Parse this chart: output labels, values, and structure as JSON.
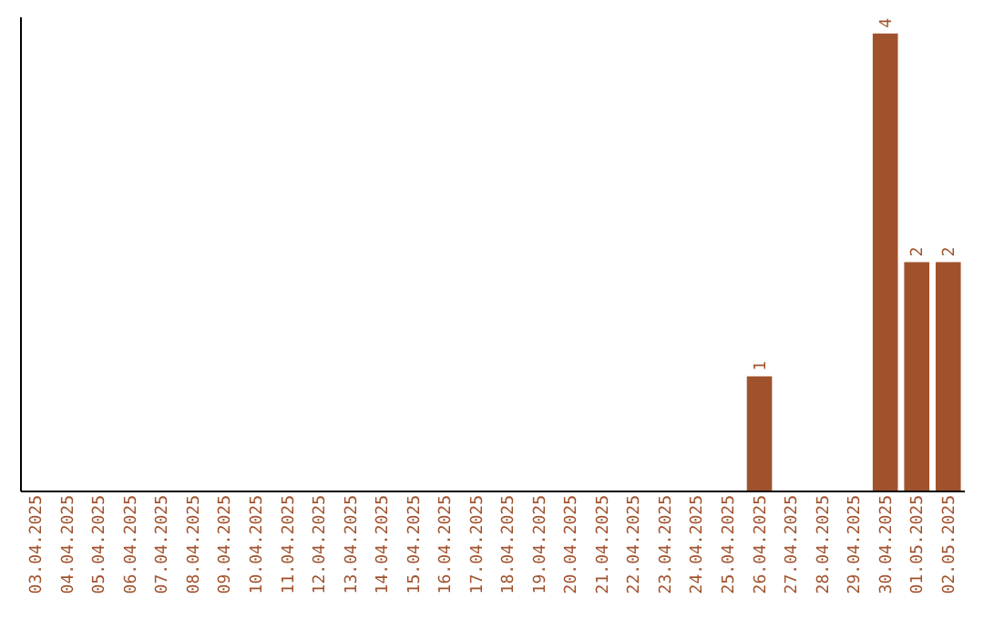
{
  "chart_data": {
    "type": "bar",
    "categories": [
      "03.04.2025",
      "04.04.2025",
      "05.04.2025",
      "06.04.2025",
      "07.04.2025",
      "08.04.2025",
      "09.04.2025",
      "10.04.2025",
      "11.04.2025",
      "12.04.2025",
      "13.04.2025",
      "14.04.2025",
      "15.04.2025",
      "16.04.2025",
      "17.04.2025",
      "18.04.2025",
      "19.04.2025",
      "20.04.2025",
      "21.04.2025",
      "22.04.2025",
      "23.04.2025",
      "24.04.2025",
      "25.04.2025",
      "26.04.2025",
      "27.04.2025",
      "28.04.2025",
      "29.04.2025",
      "30.04.2025",
      "01.05.2025",
      "02.05.2025"
    ],
    "values": [
      null,
      null,
      null,
      null,
      null,
      null,
      null,
      null,
      null,
      null,
      null,
      null,
      null,
      null,
      null,
      null,
      null,
      null,
      null,
      null,
      null,
      null,
      null,
      1,
      null,
      null,
      null,
      4,
      2,
      2
    ],
    "data_labels": true,
    "color": "#a0522d",
    "ylim": [
      0,
      4.15
    ],
    "tick_labels": "x",
    "grid": false
  }
}
